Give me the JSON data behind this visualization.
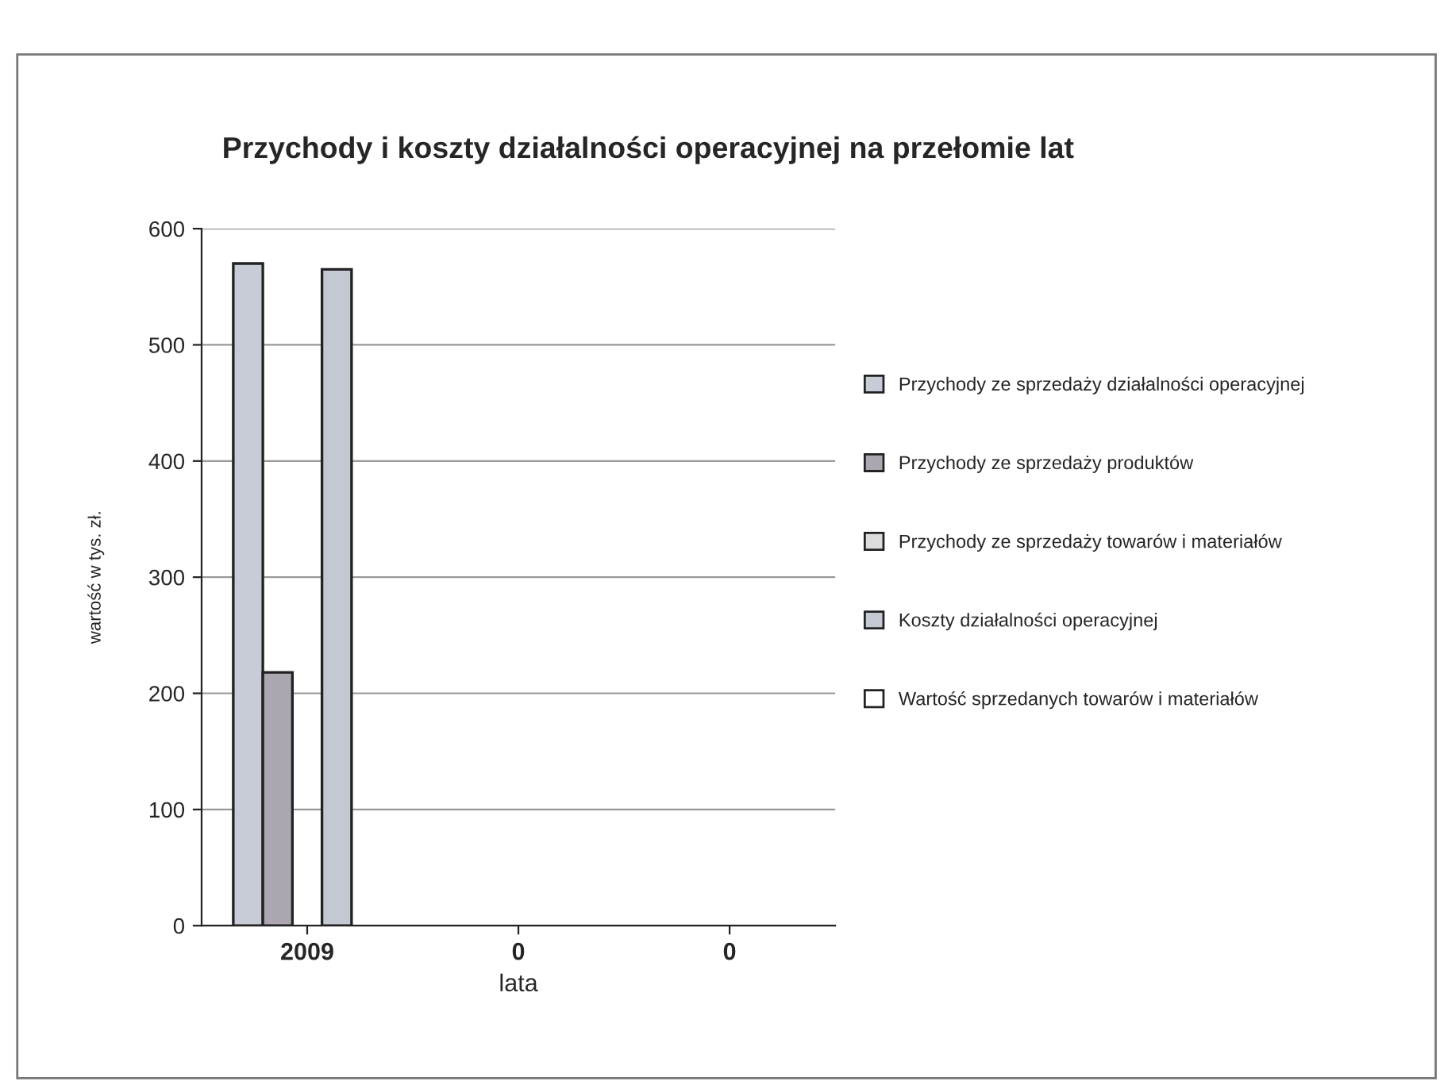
{
  "chart_data": {
    "type": "bar",
    "title": "Przychody i koszty działalności operacyjnej na przełomie lat",
    "xlabel": "lata",
    "ylabel": "wartość w tys. zł.",
    "categories": [
      "2009",
      "0",
      "0"
    ],
    "series": [
      {
        "name": "Przychody ze sprzedaży działalności operacyjnej",
        "color": "#c8ccd6",
        "values": [
          570,
          null,
          null
        ]
      },
      {
        "name": "Przychody ze sprzedaży produktów",
        "color": "#aca6b0",
        "values": [
          218,
          null,
          null
        ]
      },
      {
        "name": "Przychody ze sprzedaży towarów i materiałów",
        "color": "#dcdcdc",
        "values": [
          null,
          null,
          null
        ]
      },
      {
        "name": "Koszty działalności operacyjnej",
        "color": "#c4c8d2",
        "values": [
          565,
          null,
          null
        ]
      },
      {
        "name": "Wartość sprzedanych towarów i materiałów",
        "color": "#ffffff",
        "values": [
          null,
          null,
          null
        ]
      }
    ],
    "ylim": [
      0,
      600
    ],
    "yticks": [
      0,
      100,
      200,
      300,
      400,
      500,
      600
    ],
    "grid": "y",
    "legend": "right"
  }
}
